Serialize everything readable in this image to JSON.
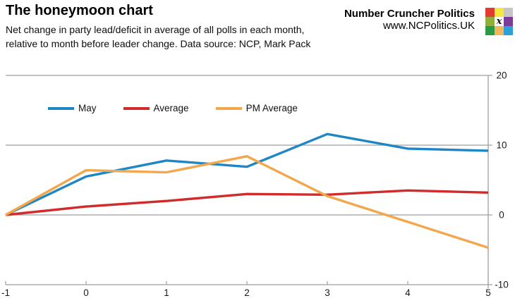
{
  "header": {
    "title": "The honeymoon chart",
    "subtitle_line1": "Net change in party lead/deficit in average of all polls in each month,",
    "subtitle_line2": "relative to month before leader change. Data source: NCP, Mark Pack",
    "brand_name": "Number Cruncher Politics",
    "brand_url": "www.NCPolitics.UK",
    "logo_letter": "x",
    "logo_colors": [
      [
        "#e23a2e",
        "#f5e93b",
        "#c6c6c6"
      ],
      [
        "#8fae3c",
        "#ffffff",
        "#7e3a96"
      ],
      [
        "#2b9a47",
        "#f2b75c",
        "#2a9fd8"
      ]
    ]
  },
  "chart_data": {
    "type": "line",
    "x": [
      -1,
      0,
      1,
      2,
      3,
      4,
      5
    ],
    "series": [
      {
        "name": "May",
        "color": "#1f86c6",
        "values": [
          0,
          5.5,
          7.8,
          6.9,
          11.6,
          9.5,
          9.2
        ]
      },
      {
        "name": "Average",
        "color": "#d22b2b",
        "values": [
          0,
          1.2,
          2.0,
          3.0,
          2.9,
          3.5,
          3.2
        ]
      },
      {
        "name": "PM Average",
        "color": "#f2a74d",
        "values": [
          0,
          6.4,
          6.1,
          8.4,
          2.7,
          -1.0,
          -4.7
        ]
      }
    ],
    "title": "",
    "xlabel": "",
    "ylabel": "",
    "xlim": [
      -1,
      5
    ],
    "ylim": [
      -10,
      20
    ],
    "xticks": [
      -1,
      0,
      1,
      2,
      3,
      4,
      5
    ],
    "yticks": [
      20,
      10,
      0,
      -10
    ],
    "grid": true,
    "legend_position": "top-left-inside",
    "grid_color": "#9e9e9e",
    "tick_label_color": "#1a1a1a"
  }
}
